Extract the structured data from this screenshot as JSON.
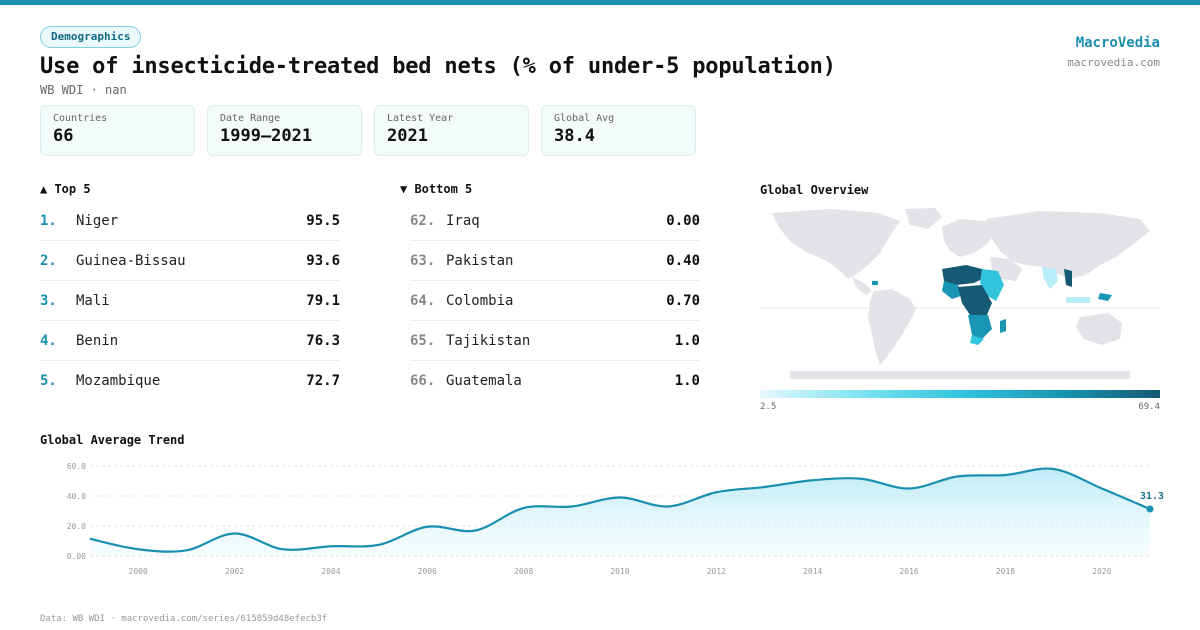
{
  "badge": "Demographics",
  "brand": {
    "name": "MacroVedia",
    "url": "macrovedia.com"
  },
  "title": "Use of insecticide-treated bed nets (% of under-5 population)",
  "subtitle": "WB WDI · nan",
  "stats": [
    {
      "label": "Countries",
      "value": "66"
    },
    {
      "label": "Date Range",
      "value": "1999–2021"
    },
    {
      "label": "Latest Year",
      "value": "2021"
    },
    {
      "label": "Global Avg",
      "value": "38.4"
    }
  ],
  "top5": {
    "heading": "▲ Top 5",
    "items": [
      {
        "rank": "1.",
        "name": "Niger",
        "value": "95.5"
      },
      {
        "rank": "2.",
        "name": "Guinea-Bissau",
        "value": "93.6"
      },
      {
        "rank": "3.",
        "name": "Mali",
        "value": "79.1"
      },
      {
        "rank": "4.",
        "name": "Benin",
        "value": "76.3"
      },
      {
        "rank": "5.",
        "name": "Mozambique",
        "value": "72.7"
      }
    ]
  },
  "bottom5": {
    "heading": "▼ Bottom 5",
    "items": [
      {
        "rank": "62.",
        "name": "Iraq",
        "value": "0.00"
      },
      {
        "rank": "63.",
        "name": "Pakistan",
        "value": "0.40"
      },
      {
        "rank": "64.",
        "name": "Colombia",
        "value": "0.70"
      },
      {
        "rank": "65.",
        "name": "Tajikistan",
        "value": "1.0"
      },
      {
        "rank": "66.",
        "name": "Guatemala",
        "value": "1.0"
      }
    ]
  },
  "map": {
    "title": "Global Overview",
    "legend_min": "2.5",
    "legend_max": "69.4",
    "colors": {
      "land": "#e3e3e8",
      "low": "#b8eef7",
      "mid": "#33c4de",
      "high": "#1896b4",
      "max": "#155a72"
    }
  },
  "trend": {
    "title": "Global Average Trend",
    "end_label": "31.3",
    "line_color": "#1a8fb0"
  },
  "footer": "Data: WB WDI · macrovedia.com/series/615859d48efecb3f",
  "chart_data": {
    "type": "area",
    "title": "Global Average Trend",
    "x": [
      1999,
      2000,
      2001,
      2002,
      2003,
      2004,
      2005,
      2006,
      2007,
      2008,
      2009,
      2010,
      2011,
      2012,
      2013,
      2014,
      2015,
      2016,
      2017,
      2018,
      2019,
      2020,
      2021
    ],
    "values": [
      11.5,
      4.5,
      3.8,
      15.0,
      4.5,
      6.5,
      7.5,
      19.5,
      17.0,
      32.0,
      33.0,
      39.0,
      33.0,
      42.5,
      46.0,
      50.5,
      51.5,
      45.0,
      53.0,
      54.0,
      58.0,
      45.0,
      31.3
    ],
    "y_ticks": [
      "0.00",
      "20.0",
      "40.0",
      "60.0"
    ],
    "x_ticks": [
      "2000",
      "2002",
      "2004",
      "2006",
      "2008",
      "2010",
      "2012",
      "2014",
      "2016",
      "2018",
      "2020"
    ],
    "ylim": [
      0,
      64
    ],
    "grid": true
  }
}
